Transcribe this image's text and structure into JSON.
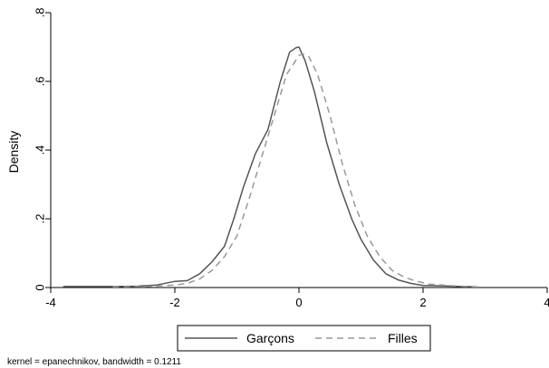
{
  "chart_data": {
    "type": "line",
    "ylabel": "Density",
    "xlim": [
      -4,
      4
    ],
    "ylim": [
      0,
      0.8
    ],
    "x_ticks": [
      {
        "value": -4,
        "label": "-4"
      },
      {
        "value": -2,
        "label": "-2"
      },
      {
        "value": 0,
        "label": "0"
      },
      {
        "value": 2,
        "label": "2"
      },
      {
        "value": 4,
        "label": "4"
      }
    ],
    "y_ticks": [
      {
        "value": 0,
        "label": "0"
      },
      {
        "value": 0.2,
        "label": ".2"
      },
      {
        "value": 0.4,
        "label": ".4"
      },
      {
        "value": 0.6,
        "label": ".6"
      },
      {
        "value": 0.8,
        "label": ".8"
      }
    ],
    "grid": false,
    "legend_position": "bottom",
    "series": [
      {
        "name": "Garçons",
        "style": "solid",
        "color": "#555555",
        "x": [
          -3.8,
          -3.4,
          -3.0,
          -2.6,
          -2.3,
          -2.0,
          -1.8,
          -1.6,
          -1.4,
          -1.2,
          -1.05,
          -0.9,
          -0.7,
          -0.5,
          -0.3,
          -0.15,
          -0.05,
          0.0,
          0.1,
          0.25,
          0.45,
          0.65,
          0.85,
          1.0,
          1.2,
          1.4,
          1.6,
          1.8,
          2.0,
          2.3,
          2.6,
          2.88
        ],
        "y": [
          0.003,
          0.003,
          0.003,
          0.004,
          0.007,
          0.018,
          0.02,
          0.04,
          0.075,
          0.12,
          0.2,
          0.29,
          0.39,
          0.46,
          0.6,
          0.685,
          0.698,
          0.7,
          0.66,
          0.57,
          0.42,
          0.3,
          0.2,
          0.14,
          0.08,
          0.04,
          0.022,
          0.012,
          0.006,
          0.005,
          0.003,
          0.002
        ]
      },
      {
        "name": "Filles",
        "style": "dashed",
        "color": "#999999",
        "x": [
          -3.0,
          -2.6,
          -2.3,
          -2.0,
          -1.8,
          -1.6,
          -1.4,
          -1.2,
          -1.0,
          -0.8,
          -0.6,
          -0.4,
          -0.2,
          0.0,
          0.05,
          0.15,
          0.3,
          0.5,
          0.7,
          0.9,
          1.1,
          1.3,
          1.5,
          1.7,
          1.9,
          2.1,
          2.4,
          2.7,
          2.88
        ],
        "y": [
          0.002,
          0.003,
          0.004,
          0.007,
          0.012,
          0.025,
          0.05,
          0.09,
          0.15,
          0.26,
          0.38,
          0.5,
          0.62,
          0.675,
          0.68,
          0.675,
          0.62,
          0.5,
          0.36,
          0.24,
          0.15,
          0.09,
          0.05,
          0.03,
          0.018,
          0.01,
          0.006,
          0.003,
          0.002
        ]
      }
    ],
    "note": "kernel = epanechnikov, bandwidth = 0.1211"
  }
}
